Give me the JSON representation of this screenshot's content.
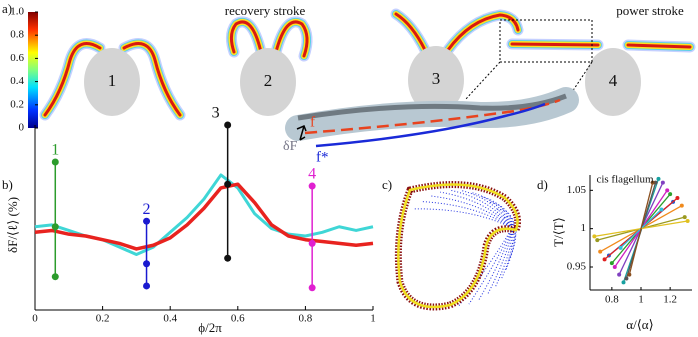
{
  "panel_labels": [
    "a)",
    "b)",
    "c)",
    "d)"
  ],
  "panel_a": {
    "recovery_label": "recovery stroke",
    "power_label": "power stroke",
    "cell_labels": [
      "1",
      "2",
      "3",
      "4"
    ],
    "colorbar": {
      "ticks": [
        0,
        0.2,
        0.4,
        0.6,
        0.8,
        {
          "value": 1,
          "label": "1.0"
        }
      ]
    },
    "inset": {
      "f": "f",
      "f_star": "f*",
      "delta": "δF"
    }
  },
  "chart_data": [
    {
      "type": "line",
      "xlabel": "ϕ/2π",
      "ylabel": "δF/⟨ℓ⟩ (%)",
      "x": [
        0,
        0.05,
        0.1,
        0.15,
        0.2,
        0.25,
        0.3,
        0.35,
        0.4,
        0.45,
        0.5,
        0.55,
        0.6,
        0.65,
        0.7,
        0.75,
        0.8,
        0.85,
        0.9,
        0.95,
        1
      ],
      "xlim": [
        0,
        1
      ],
      "xticks": [
        0,
        0.2,
        0.4,
        0.6,
        0.8,
        1
      ],
      "ylim": [
        0,
        10
      ],
      "series": [
        {
          "color": "#3fd6d6",
          "values": [
            4.5,
            4.6,
            4.3,
            4.0,
            3.8,
            3.4,
            3.0,
            3.4,
            4.2,
            5.0,
            6.0,
            7.3,
            6.6,
            5.2,
            4.4,
            4.1,
            4.0,
            4.2,
            4.5,
            4.3,
            4.5
          ]
        },
        {
          "color": "#e8231f",
          "values": [
            4.2,
            4.3,
            4.1,
            4.0,
            3.8,
            3.6,
            3.3,
            3.5,
            3.9,
            4.6,
            5.5,
            6.6,
            6.8,
            5.8,
            4.6,
            4.0,
            3.8,
            3.7,
            3.6,
            3.5,
            3.6
          ]
        }
      ],
      "error_bars": [
        {
          "label": "1",
          "x": 0.06,
          "value": 4.5,
          "low": 1.8,
          "high": 8,
          "color": "#2c9c2c"
        },
        {
          "label": "2",
          "x": 0.33,
          "value": 2.5,
          "low": 1.3,
          "high": 4.8,
          "color": "#1a1ad0"
        },
        {
          "label": "3",
          "x": 0.57,
          "value": 6.8,
          "low": 2.8,
          "high": 10,
          "color": "#111111"
        },
        {
          "label": "4",
          "x": 0.82,
          "value": 3.6,
          "low": 1.2,
          "high": 6.7,
          "color": "#e020d0"
        }
      ]
    },
    {
      "type": "segments",
      "title": "cis flagellum",
      "xlabel": "α/⟨α⟩",
      "ylabel": "T/⟨T⟩",
      "xlim": [
        0.65,
        1.35
      ],
      "xticks": [
        0.8,
        1,
        1.2
      ],
      "ylim": [
        0.92,
        1.07
      ],
      "yticks": [
        0.95,
        1,
        1.05
      ],
      "series": [
        {
          "color": "#f08a1c",
          "x": [
            0.72,
            1.28
          ],
          "values": [
            0.97,
            1.03
          ]
        },
        {
          "color": "#2ca02c",
          "x": [
            0.8,
            1.2
          ],
          "values": [
            0.955,
            1.045
          ]
        },
        {
          "color": "#8040c0",
          "x": [
            0.85,
            1.15
          ],
          "values": [
            0.94,
            1.06
          ]
        },
        {
          "color": "#1f5fd0",
          "x": [
            0.78,
            1.22
          ],
          "values": [
            0.965,
            1.035
          ]
        },
        {
          "color": "#18a0a0",
          "x": [
            0.88,
            1.12
          ],
          "values": [
            0.93,
            1.065
          ]
        },
        {
          "color": "#9a9a20",
          "x": [
            0.7,
            1.3
          ],
          "values": [
            0.985,
            1.015
          ]
        },
        {
          "color": "#d020c0",
          "x": [
            0.82,
            1.18
          ],
          "values": [
            0.95,
            1.05
          ]
        },
        {
          "color": "#555555",
          "x": [
            0.9,
            1.1
          ],
          "values": [
            0.935,
            1.06
          ]
        },
        {
          "color": "#e02020",
          "x": [
            0.75,
            1.25
          ],
          "values": [
            0.96,
            1.04
          ]
        },
        {
          "color": "#30c0e0",
          "x": [
            0.86,
            1.14
          ],
          "values": [
            0.975,
            1.025
          ]
        },
        {
          "color": "#e0c020",
          "x": [
            0.68,
            1.32
          ],
          "values": [
            0.99,
            1.01
          ]
        },
        {
          "color": "#8a5020",
          "x": [
            0.92,
            1.08
          ],
          "values": [
            0.94,
            1.06
          ]
        }
      ]
    }
  ]
}
